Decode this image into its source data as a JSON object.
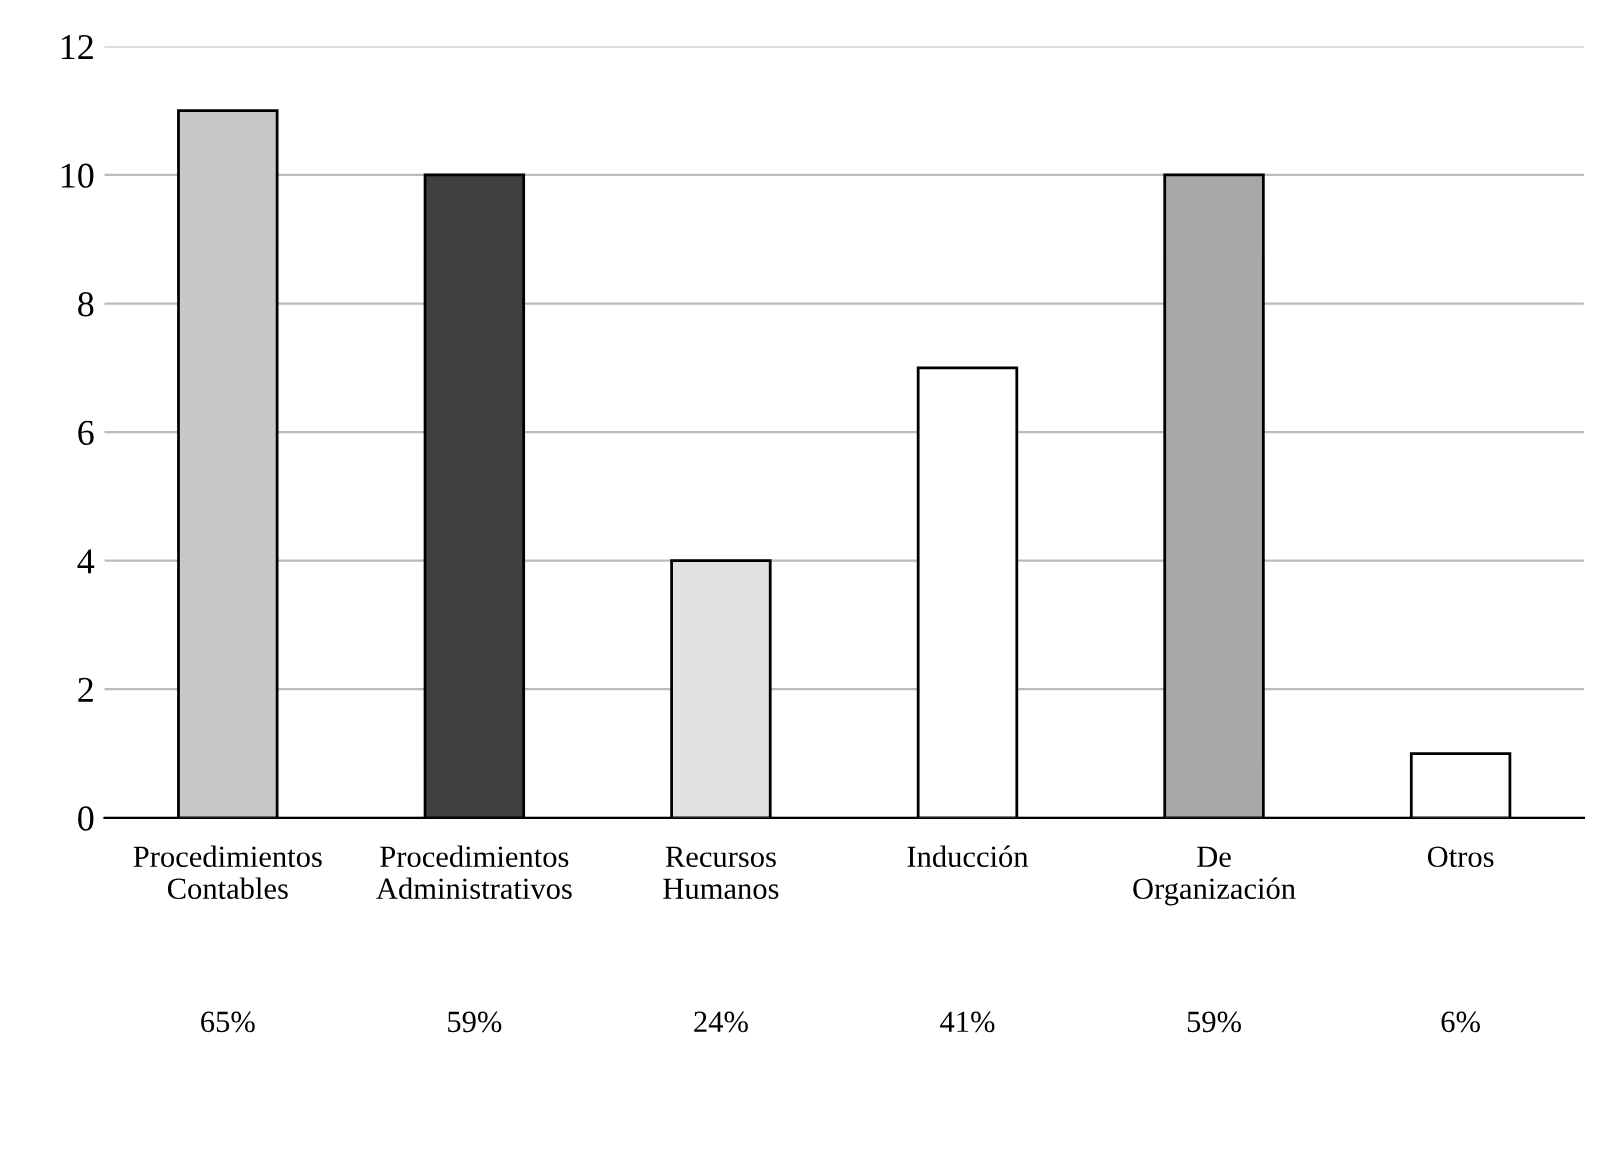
{
  "chart_data": {
    "type": "bar",
    "categories": [
      "Procedimientos\nContables",
      "Procedimientos\nAdministrativos",
      "Recursos\nHumanos",
      "Inducción",
      "De\nOrganización",
      "Otros"
    ],
    "values": [
      11,
      10,
      4,
      7,
      10,
      1
    ],
    "colors": [
      "#c8c8c8",
      "#404040",
      "#e0e0e0",
      "#ffffff",
      "#a8a8a8",
      "#ffffff"
    ],
    "annotations": [
      "65%",
      "59%",
      "24%",
      "41%",
      "59%",
      "6%"
    ],
    "ylim": [
      0,
      12
    ],
    "yticks": [
      0,
      2,
      4,
      6,
      8,
      10,
      12
    ],
    "grid": "y"
  }
}
